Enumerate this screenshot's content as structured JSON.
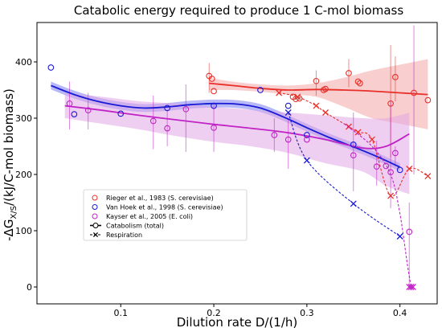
{
  "chart_data": {
    "type": "scatter",
    "title": "Catabolic energy required to produce 1 C-mol biomass",
    "xlabel": "Dilution rate D/(1/h)",
    "ylabel_main": "-ΔG",
    "ylabel_sub": "X/S",
    "ylabel_rest": "/(kJ/C-mol biomass)",
    "xlim": [
      0.01,
      0.44
    ],
    "ylim": [
      -30,
      470
    ],
    "xticks": [
      {
        "value": 0.1,
        "label": "0.1"
      },
      {
        "value": 0.2,
        "label": "0.2"
      },
      {
        "value": 0.3,
        "label": "0.3"
      },
      {
        "value": 0.4,
        "label": "0.4"
      }
    ],
    "yticks": [
      {
        "value": 0,
        "label": "0"
      },
      {
        "value": 100,
        "label": "100"
      },
      {
        "value": 200,
        "label": "200"
      },
      {
        "value": 300,
        "label": "300"
      },
      {
        "value": 400,
        "label": "400"
      }
    ],
    "grid": false,
    "legend_position": "lower-left",
    "legend": [
      {
        "label": "Rieger et al., 1983 (S. cerevisiae)",
        "marker": "circle",
        "color": "#e8302a"
      },
      {
        "label": "Van Hoek et al., 1998 (S. cerevisiae)",
        "marker": "circle",
        "color": "#1a1ad6"
      },
      {
        "label": "Kayser et al., 2005 (E. coli)",
        "marker": "circle",
        "color": "#c023c6"
      },
      {
        "label": "Catabolism (total)",
        "marker": "line-circle",
        "color": "#000000"
      },
      {
        "label": "Respiration",
        "marker": "dash-x",
        "color": "#000000"
      }
    ],
    "series": [
      {
        "name": "Rieger et al., 1983 (S. cerevisiae)",
        "color": "#e8302a",
        "band_color": "#f4a6a6",
        "points": [
          {
            "x": 0.195,
            "y": 375
          },
          {
            "x": 0.198,
            "y": 370
          },
          {
            "x": 0.2,
            "y": 348
          },
          {
            "x": 0.285,
            "y": 338
          },
          {
            "x": 0.288,
            "y": 334
          },
          {
            "x": 0.292,
            "y": 335
          },
          {
            "x": 0.31,
            "y": 366
          },
          {
            "x": 0.318,
            "y": 350
          },
          {
            "x": 0.32,
            "y": 352
          },
          {
            "x": 0.345,
            "y": 380
          },
          {
            "x": 0.355,
            "y": 365
          },
          {
            "x": 0.357,
            "y": 362
          },
          {
            "x": 0.39,
            "y": 326
          },
          {
            "x": 0.395,
            "y": 373
          },
          {
            "x": 0.415,
            "y": 345
          },
          {
            "x": 0.43,
            "y": 332
          }
        ],
        "errors": [
          {
            "x": 0.195,
            "lo": 345,
            "hi": 398
          },
          {
            "x": 0.31,
            "lo": 340,
            "hi": 385
          },
          {
            "x": 0.345,
            "lo": 355,
            "hi": 405
          },
          {
            "x": 0.39,
            "lo": 230,
            "hi": 430
          },
          {
            "x": 0.395,
            "lo": 330,
            "hi": 410
          }
        ],
        "fit": {
          "x": [
            0.195,
            0.22,
            0.25,
            0.28,
            0.31,
            0.34,
            0.37,
            0.4,
            0.43
          ],
          "y": [
            362,
            358,
            353,
            350,
            351,
            350,
            348,
            345,
            342
          ],
          "band_lo": [
            350,
            350,
            347,
            342,
            338,
            320,
            300,
            290,
            280
          ],
          "band_hi": [
            372,
            365,
            360,
            358,
            362,
            372,
            385,
            395,
            405
          ]
        },
        "respiration": {
          "x": [
            0.27,
            0.29,
            0.31,
            0.32,
            0.345,
            0.355,
            0.37,
            0.39,
            0.41,
            0.43
          ],
          "y": [
            345,
            338,
            322,
            310,
            285,
            275,
            262,
            162,
            210,
            197
          ]
        }
      },
      {
        "name": "Van Hoek et al., 1998 (S. cerevisiae)",
        "color": "#1a1ad6",
        "band_color": "#7b7df0",
        "points": [
          {
            "x": 0.025,
            "y": 390
          },
          {
            "x": 0.05,
            "y": 307
          },
          {
            "x": 0.1,
            "y": 308
          },
          {
            "x": 0.15,
            "y": 318
          },
          {
            "x": 0.2,
            "y": 322
          },
          {
            "x": 0.25,
            "y": 350
          },
          {
            "x": 0.28,
            "y": 322
          },
          {
            "x": 0.3,
            "y": 270
          },
          {
            "x": 0.35,
            "y": 253
          },
          {
            "x": 0.4,
            "y": 208
          }
        ],
        "fit": {
          "x": [
            0.025,
            0.05,
            0.075,
            0.1,
            0.125,
            0.15,
            0.175,
            0.2,
            0.225,
            0.25,
            0.275,
            0.3,
            0.325,
            0.35,
            0.375,
            0.4
          ],
          "y": [
            358,
            342,
            330,
            322,
            318,
            320,
            324,
            326,
            325,
            318,
            302,
            283,
            265,
            249,
            232,
            213
          ],
          "band_width": 7
        },
        "respiration": {
          "x": [
            0.28,
            0.3,
            0.35,
            0.4
          ],
          "y": [
            310,
            225,
            148,
            90
          ]
        }
      },
      {
        "name": "Kayser et al., 2005 (E. coli)",
        "color": "#c023c6",
        "band_color": "#e1a7e6",
        "points": [
          {
            "x": 0.045,
            "y": 326
          },
          {
            "x": 0.065,
            "y": 314
          },
          {
            "x": 0.135,
            "y": 295
          },
          {
            "x": 0.15,
            "y": 282
          },
          {
            "x": 0.17,
            "y": 316
          },
          {
            "x": 0.2,
            "y": 283
          },
          {
            "x": 0.265,
            "y": 270
          },
          {
            "x": 0.28,
            "y": 262
          },
          {
            "x": 0.3,
            "y": 262
          },
          {
            "x": 0.35,
            "y": 234
          },
          {
            "x": 0.375,
            "y": 214
          },
          {
            "x": 0.385,
            "y": 215
          },
          {
            "x": 0.39,
            "y": 204
          },
          {
            "x": 0.395,
            "y": 238
          },
          {
            "x": 0.41,
            "y": 98
          }
        ],
        "errors": [
          {
            "x": 0.045,
            "lo": 280,
            "hi": 365
          },
          {
            "x": 0.065,
            "lo": 280,
            "hi": 345
          },
          {
            "x": 0.135,
            "lo": 245,
            "hi": 340
          },
          {
            "x": 0.15,
            "lo": 250,
            "hi": 315
          },
          {
            "x": 0.17,
            "lo": 240,
            "hi": 360
          },
          {
            "x": 0.2,
            "lo": 240,
            "hi": 325
          },
          {
            "x": 0.265,
            "lo": 240,
            "hi": 300
          },
          {
            "x": 0.28,
            "lo": 210,
            "hi": 300
          },
          {
            "x": 0.35,
            "lo": 170,
            "hi": 310
          },
          {
            "x": 0.375,
            "lo": 180,
            "hi": 260
          },
          {
            "x": 0.39,
            "lo": 140,
            "hi": 330
          },
          {
            "x": 0.395,
            "lo": 215,
            "hi": 250
          },
          {
            "x": 0.41,
            "lo": 0,
            "hi": 150
          },
          {
            "x": 0.415,
            "lo": 200,
            "hi": 465
          }
        ],
        "fit": {
          "x": [
            0.04,
            0.08,
            0.12,
            0.16,
            0.2,
            0.24,
            0.28,
            0.32,
            0.36,
            0.385,
            0.41
          ],
          "y": [
            322,
            314,
            305,
            297,
            289,
            282,
            274,
            262,
            247,
            250,
            272
          ],
          "band_lo": [
            300,
            290,
            280,
            268,
            258,
            250,
            238,
            220,
            205,
            180,
            165
          ],
          "band_hi": [
            345,
            338,
            330,
            326,
            320,
            315,
            310,
            305,
            300,
            300,
            310
          ]
        },
        "respiration": {
          "x": [
            0.34,
            0.37,
            0.39,
            0.4,
            0.408,
            0.412
          ],
          "y": [
            290,
            250,
            200,
            130,
            40,
            0
          ]
        },
        "x_markers": [
          {
            "x": 0.41,
            "y": 0
          },
          {
            "x": 0.414,
            "y": 0
          }
        ]
      }
    ]
  }
}
